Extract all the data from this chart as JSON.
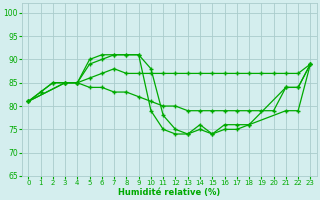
{
  "xlabel": "Humidité relative (%)",
  "background_color": "#d4eeee",
  "grid_color": "#aacccc",
  "line_color": "#00aa00",
  "ylim": [
    65,
    102
  ],
  "xlim": [
    -0.5,
    23.5
  ],
  "yticks": [
    65,
    70,
    75,
    80,
    85,
    90,
    95,
    100
  ],
  "xticks": [
    0,
    1,
    2,
    3,
    4,
    5,
    6,
    7,
    8,
    9,
    10,
    11,
    12,
    13,
    14,
    15,
    16,
    17,
    18,
    19,
    20,
    21,
    22,
    23
  ],
  "lines": [
    {
      "x": [
        0,
        1,
        2,
        3,
        4,
        5,
        6,
        7,
        8,
        9,
        10,
        11,
        12,
        13,
        14,
        15,
        16,
        17,
        18,
        21,
        22,
        23
      ],
      "y": [
        81,
        83,
        85,
        85,
        85,
        90,
        91,
        91,
        91,
        91,
        88,
        78,
        75,
        74,
        76,
        74,
        76,
        76,
        76,
        84,
        84,
        89
      ]
    },
    {
      "x": [
        0,
        1,
        2,
        3,
        4,
        5,
        6,
        7,
        8,
        9,
        10,
        11,
        12,
        13,
        14,
        15,
        16,
        17,
        18,
        21,
        22,
        23
      ],
      "y": [
        81,
        83,
        85,
        85,
        85,
        89,
        90,
        91,
        91,
        91,
        79,
        75,
        74,
        74,
        75,
        74,
        75,
        75,
        76,
        79,
        79,
        89
      ]
    },
    {
      "x": [
        0,
        3,
        4,
        5,
        6,
        7,
        8,
        9,
        10,
        11,
        12,
        13,
        14,
        15,
        16,
        17,
        18,
        19,
        20,
        21,
        22,
        23
      ],
      "y": [
        81,
        85,
        85,
        86,
        87,
        88,
        87,
        87,
        87,
        87,
        87,
        87,
        87,
        87,
        87,
        87,
        87,
        87,
        87,
        87,
        87,
        89
      ]
    },
    {
      "x": [
        0,
        3,
        4,
        5,
        6,
        7,
        8,
        9,
        10,
        11,
        12,
        13,
        14,
        15,
        16,
        17,
        18,
        19,
        20,
        21,
        22,
        23
      ],
      "y": [
        81,
        85,
        85,
        84,
        84,
        83,
        83,
        82,
        81,
        80,
        80,
        79,
        79,
        79,
        79,
        79,
        79,
        79,
        79,
        84,
        84,
        89
      ]
    }
  ]
}
